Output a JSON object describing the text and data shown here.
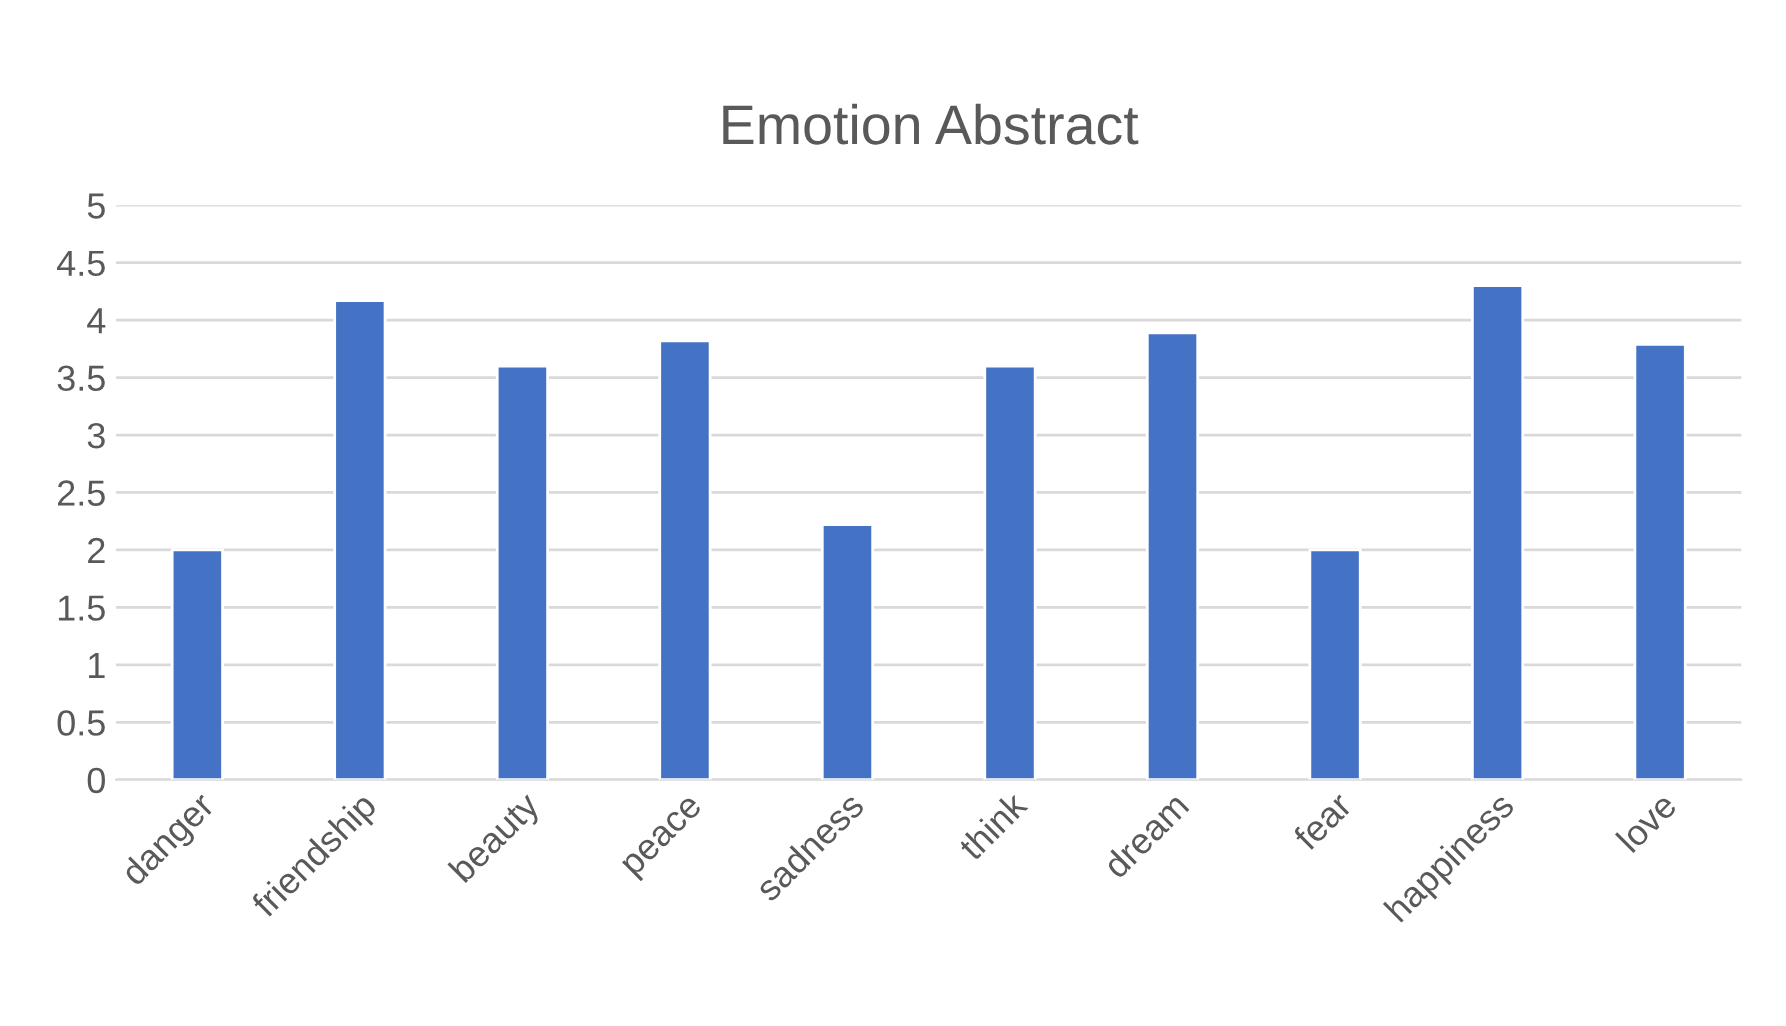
{
  "chart_data": {
    "type": "bar",
    "title": "Emotion Abstract",
    "categories": [
      "danger",
      "friendship",
      "beauty",
      "peace",
      "sadness",
      "think",
      "dream",
      "fear",
      "happiness",
      "love"
    ],
    "values": [
      2,
      4.17,
      3.6,
      3.82,
      2.22,
      3.6,
      3.89,
      2,
      4.3,
      3.79
    ],
    "color": "#4472c4",
    "ylim": [
      0,
      5
    ],
    "yticks": [
      0,
      0.5,
      1,
      1.5,
      2,
      2.5,
      3,
      3.5,
      4,
      4.5,
      5
    ],
    "grid": "y",
    "legend": false
  }
}
